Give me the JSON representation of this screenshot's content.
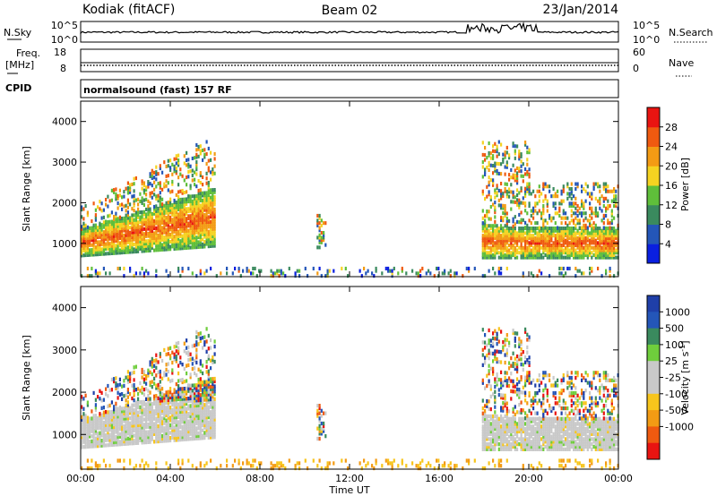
{
  "header": {
    "station": "Kodiak (fitACF)",
    "beam": "Beam 02",
    "date": "23/Jan/2014"
  },
  "top_panels": {
    "nsky_label": "N.Sky",
    "nsearch_label": "N.Search",
    "nsky_ticks": [
      "10^5",
      "10^0"
    ],
    "nsearch_ticks": [
      "10^5",
      "10^0"
    ],
    "freq_label_1": "Freq.",
    "freq_label_2": "[MHz]",
    "freq_ticks": [
      "18",
      "8"
    ],
    "nave_label": "Nave",
    "nave_ticks": [
      "60",
      "0"
    ],
    "cpid_label": "CPID",
    "cpid_text": "normalsound (fast) 157 RF"
  },
  "colors": {
    "power_scale": [
      "#0a1fe0",
      "#2456b8",
      "#3a8a5e",
      "#5fbf3a",
      "#f5d321",
      "#f39b14",
      "#ef5a10",
      "#e91411"
    ],
    "velocity_scale": [
      "#e91411",
      "#ef5a10",
      "#f39b14",
      "#f7c51c",
      "#c9c9c9",
      "#c9c9c9",
      "#6fce3c",
      "#3a8a5e",
      "#2456b8",
      "#1f3fa8"
    ],
    "ground_scatter": "#c9c9c9"
  },
  "chart_data": [
    {
      "type": "heatmap",
      "name": "power",
      "ylabel": "Slant Range [km]",
      "yticks": [
        "1000",
        "2000",
        "3000",
        "4000"
      ],
      "ylim": [
        180,
        4500
      ],
      "xlim_hours": [
        0,
        24
      ],
      "colorbar_label": "Power [dB]",
      "colorbar_ticks": [
        "4",
        "8",
        "12",
        "16",
        "20",
        "24",
        "28"
      ],
      "clim": [
        0,
        32
      ]
    },
    {
      "type": "heatmap",
      "name": "velocity",
      "ylabel": "Slant Range [km]",
      "yticks": [
        "1000",
        "2000",
        "3000",
        "4000"
      ],
      "ylim": [
        180,
        4500
      ],
      "xlim_hours": [
        0,
        24
      ],
      "colorbar_label": "Velocity [m s",
      "colorbar_label_sup": "-1",
      "colorbar_label_end": "]",
      "colorbar_ticks": [
        "1000",
        "500",
        "100",
        "25",
        "-25",
        "-100",
        "-500",
        "-1000"
      ]
    }
  ],
  "xaxis": {
    "label": "Time UT",
    "ticks": [
      "00:00",
      "04:00",
      "08:00",
      "12:00",
      "16:00",
      "20:00",
      "00:00"
    ]
  }
}
